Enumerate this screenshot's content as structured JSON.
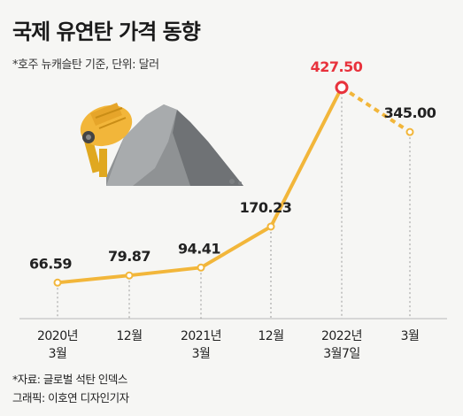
{
  "header": {
    "title": "국제 유연탄 가격 동향",
    "subtitle": "*호주 뉴캐슬탄 기준, 단위: 달러"
  },
  "footer": {
    "source": "*자료: 글로벌 석탄 인덱스",
    "credit": "그래픽: 이호연 디자인기자"
  },
  "colors": {
    "line": "#f2b63a",
    "highlight": "#e8323c",
    "text": "#222222",
    "background": "#f6f6f4"
  },
  "chart_data": {
    "type": "line",
    "title": "국제 유연탄 가격 동향",
    "subtitle": "*호주 뉴캐슬탄 기준, 단위: 달러",
    "categories": [
      [
        "2020년",
        "3월"
      ],
      [
        "12월"
      ],
      [
        "2021년",
        "3월"
      ],
      [
        "12월"
      ],
      [
        "2022년",
        "3월7일"
      ],
      [
        "3월"
      ]
    ],
    "values": [
      66.59,
      79.87,
      94.41,
      170.23,
      427.5,
      345.0
    ],
    "value_labels": [
      "66.59",
      "79.87",
      "94.41",
      "170.23",
      "427.50",
      "345.00"
    ],
    "highlight_index": 4,
    "dashed_last_segment": true,
    "ylim": [
      0,
      450
    ],
    "grid": false,
    "illustration": "cement-mixer-and-coal-pile"
  }
}
